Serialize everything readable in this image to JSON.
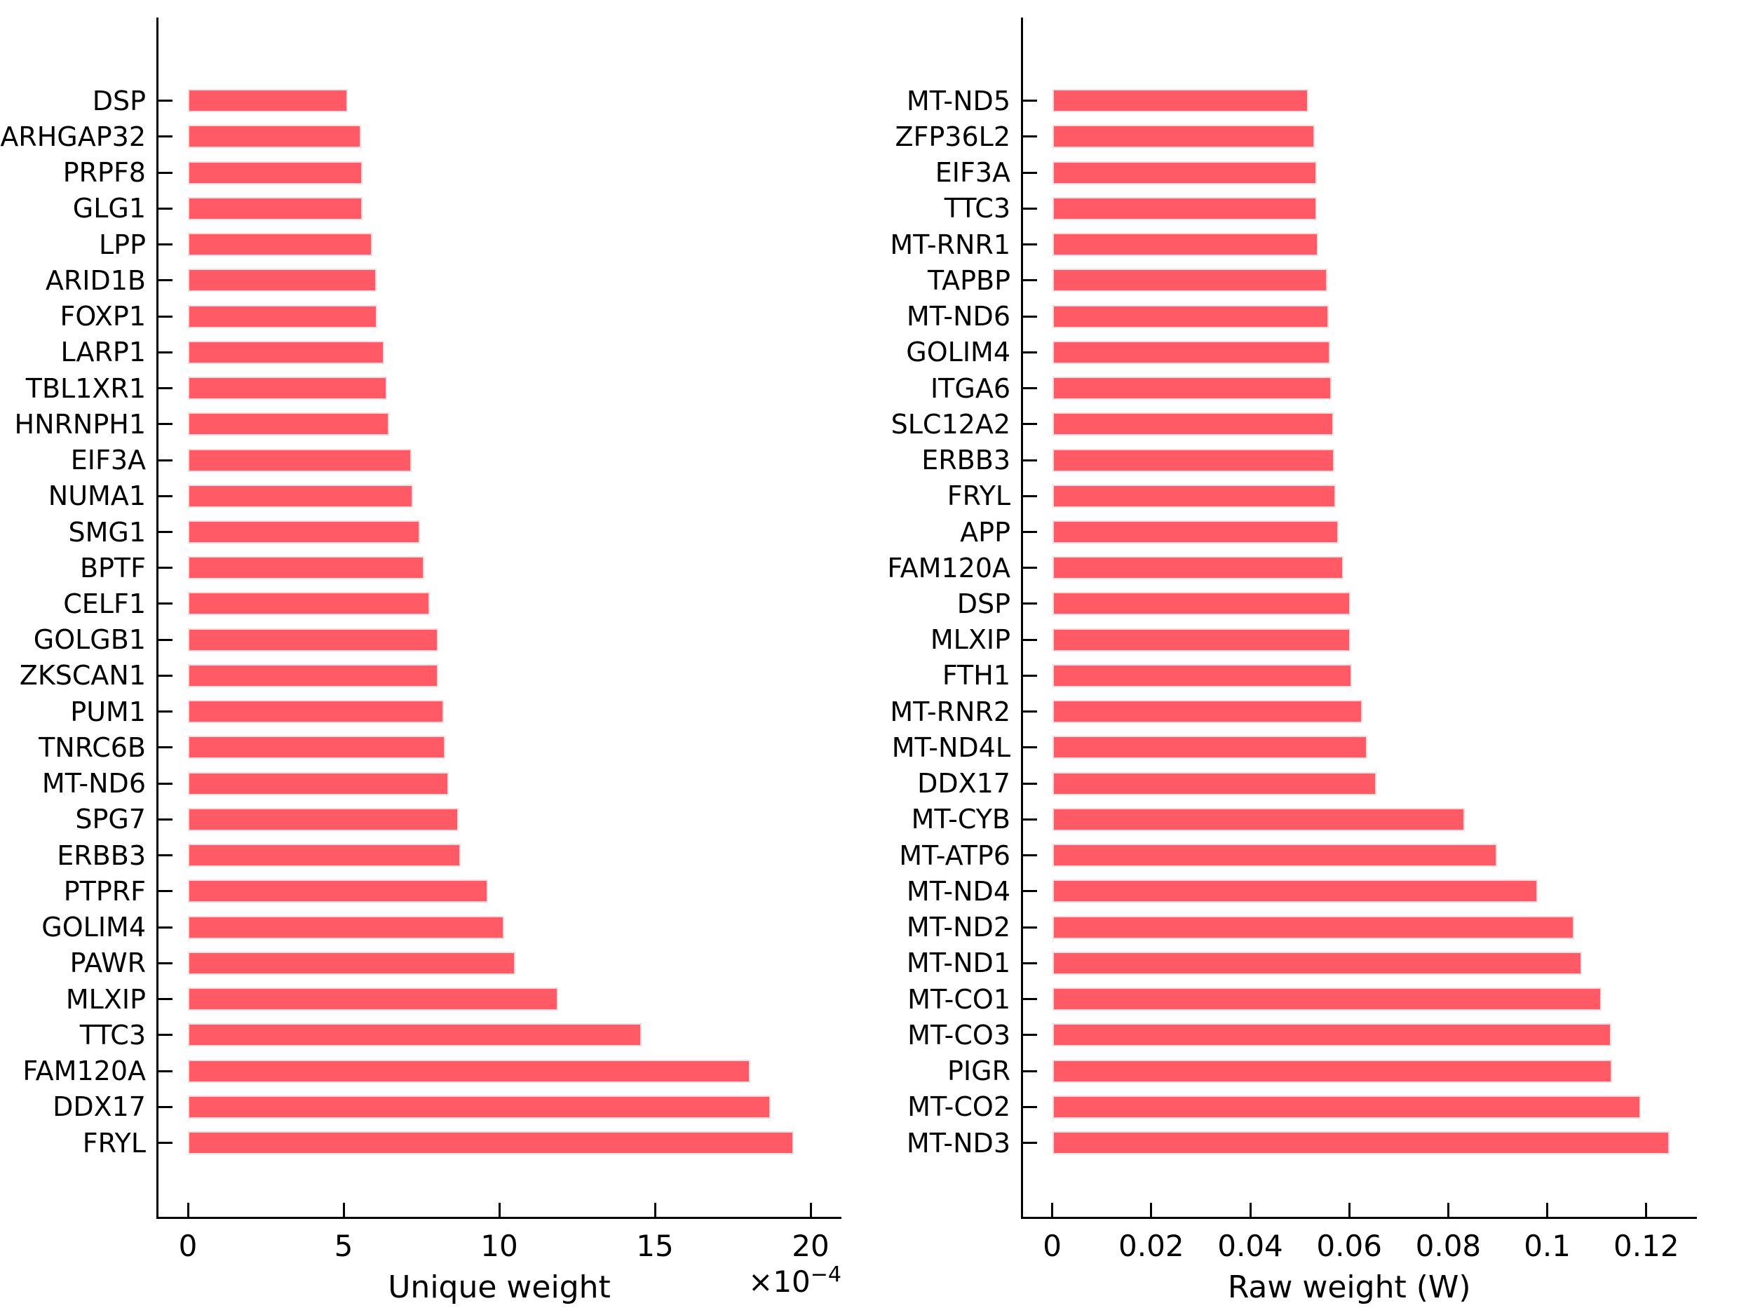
{
  "figure": {
    "background": "#ffffff",
    "bar_fill": "#ff5a65",
    "bar_edge": "#ffd9dc",
    "axis_color": "#000000"
  },
  "chart_data": [
    {
      "type": "bar",
      "orientation": "horizontal",
      "title": "",
      "xlabel": "Unique weight",
      "offset_base": "×10",
      "offset_exp": "−4",
      "values_unit": "1e-4",
      "grid": false,
      "legend": null,
      "xlim_e4": [
        -0.95,
        21.0
      ],
      "xticks": [
        0,
        5,
        10,
        15,
        20
      ],
      "xtick_labels": [
        "0",
        "5",
        "10",
        "15",
        "20"
      ],
      "categories": [
        "DSP",
        "ARHGAP32",
        "PRPF8",
        "GLG1",
        "LPP",
        "ARID1B",
        "FOXP1",
        "LARP1",
        "TBL1XR1",
        "HNRNPH1",
        "EIF3A",
        "NUMA1",
        "SMG1",
        "BPTF",
        "CELF1",
        "GOLGB1",
        "ZKSCAN1",
        "PUM1",
        "TNRC6B",
        "MT-ND6",
        "SPG7",
        "ERBB3",
        "PTPRF",
        "GOLIM4",
        "PAWR",
        "MLXIP",
        "TTC3",
        "FAM120A",
        "DDX17",
        "FRYL"
      ],
      "values": [
        5.13,
        5.56,
        5.6,
        5.61,
        5.93,
        6.05,
        6.07,
        6.31,
        6.39,
        6.46,
        7.19,
        7.22,
        7.46,
        7.58,
        7.78,
        8.03,
        8.05,
        8.23,
        8.27,
        8.37,
        8.7,
        8.77,
        9.65,
        10.16,
        10.52,
        11.9,
        14.57,
        18.06,
        18.72,
        19.45
      ]
    },
    {
      "type": "bar",
      "orientation": "horizontal",
      "title": "",
      "xlabel": "Raw weight (W)",
      "offset_base": "",
      "offset_exp": "",
      "values_unit": "1",
      "grid": false,
      "legend": null,
      "xlim": [
        -0.0059,
        0.1302
      ],
      "xticks": [
        0,
        0.02,
        0.04,
        0.06,
        0.08,
        0.1,
        0.12
      ],
      "xtick_labels": [
        "0",
        "0.02",
        "0.04",
        "0.06",
        "0.08",
        "0.1",
        "0.12"
      ],
      "categories": [
        "MT-ND5",
        "ZFP36L2",
        "EIF3A",
        "TTC3",
        "MT-RNR1",
        "TAPBP",
        "MT-ND6",
        "GOLIM4",
        "ITGA6",
        "SLC12A2",
        "ERBB3",
        "FRYL",
        "APP",
        "FAM120A",
        "DSP",
        "MLXIP",
        "FTH1",
        "MT-RNR2",
        "MT-ND4L",
        "DDX17",
        "MT-CYB",
        "MT-ATP6",
        "MT-ND4",
        "MT-ND2",
        "MT-ND1",
        "MT-CO1",
        "MT-CO3",
        "PIGR",
        "MT-CO2",
        "MT-ND3"
      ],
      "values": [
        0.0517,
        0.0531,
        0.0534,
        0.0535,
        0.0538,
        0.0556,
        0.0559,
        0.0562,
        0.0565,
        0.0568,
        0.057,
        0.0573,
        0.0578,
        0.0588,
        0.0602,
        0.0603,
        0.0605,
        0.0627,
        0.0637,
        0.0655,
        0.0834,
        0.0899,
        0.0981,
        0.1054,
        0.107,
        0.111,
        0.113,
        0.1131,
        0.1189,
        0.1247
      ]
    }
  ]
}
